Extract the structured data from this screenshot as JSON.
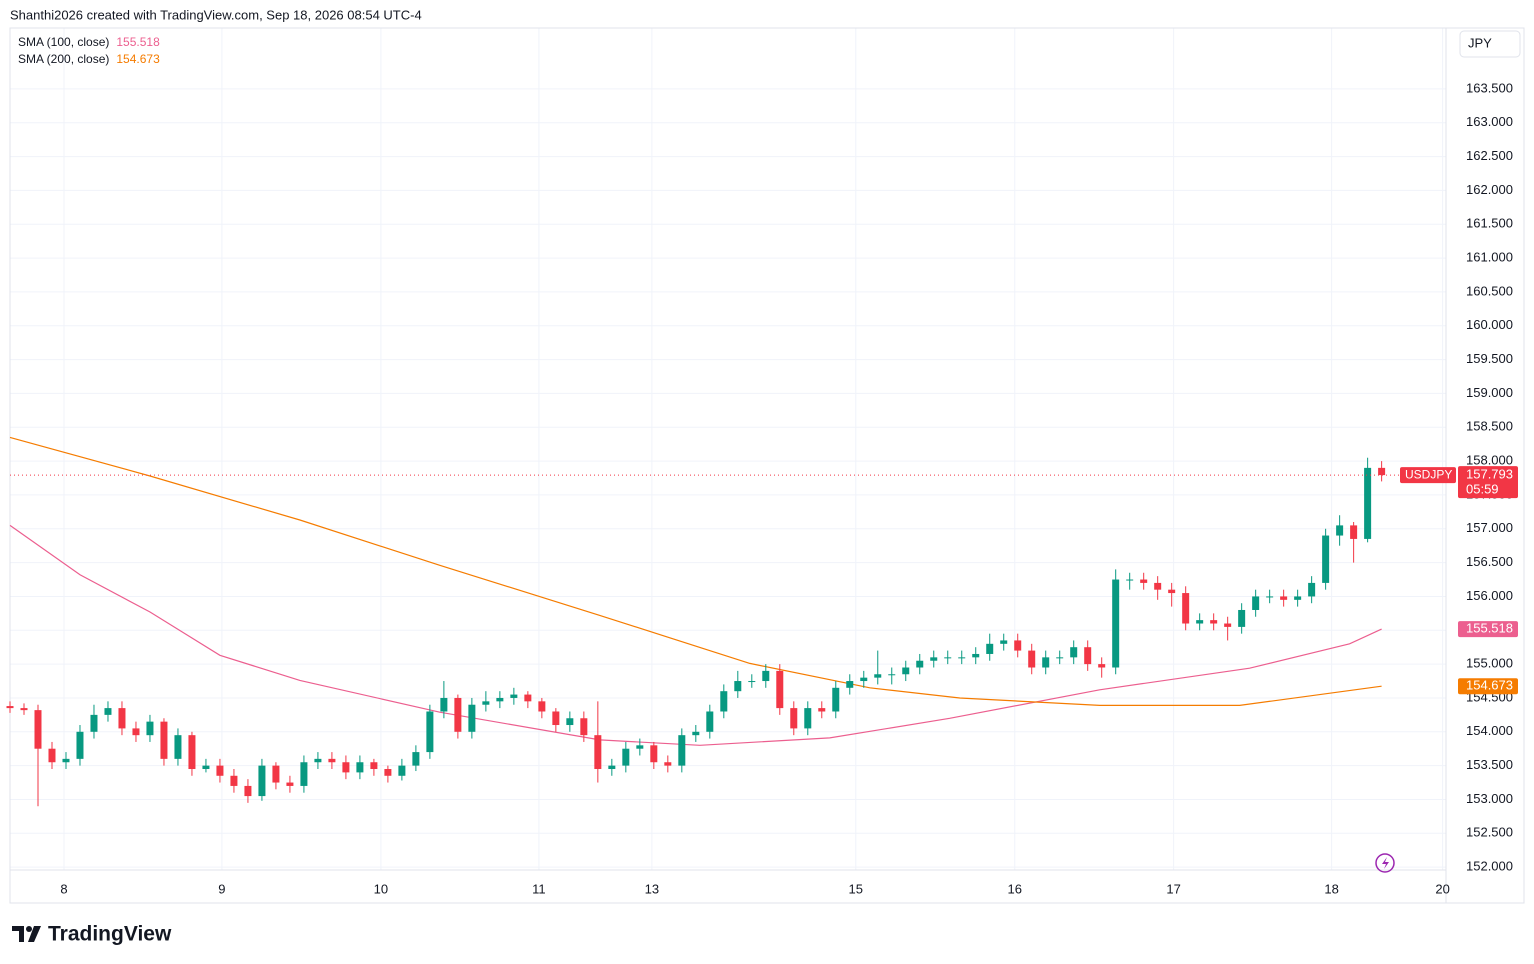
{
  "header": {
    "text": "Shanthi2026 created with TradingView.com, Sep 18, 2026 08:54 UTC-4"
  },
  "chart_data": {
    "type": "candlestick",
    "symbol": "USDJPY",
    "currency": "JPY",
    "up_color": "#089981",
    "down_color": "#f23645",
    "x": [
      0,
      1,
      2,
      3,
      4,
      5,
      6,
      7,
      8,
      9,
      10,
      11,
      12,
      13,
      14,
      15,
      16,
      17,
      18,
      19,
      20,
      21,
      22,
      23,
      24,
      25,
      26,
      27,
      28,
      29,
      30,
      31,
      32,
      33,
      34,
      35,
      36,
      37,
      38,
      39,
      40,
      41,
      42,
      43,
      44,
      45,
      46,
      47,
      48,
      49,
      50,
      51,
      52,
      53,
      54,
      55,
      56,
      57,
      58,
      59,
      60,
      61,
      62,
      63,
      64,
      65,
      66,
      67,
      68,
      69,
      70,
      71,
      72,
      73,
      74,
      75,
      76,
      77,
      78,
      79,
      80,
      81,
      82,
      83,
      84,
      85,
      86,
      87,
      88,
      89,
      90,
      91,
      92,
      93,
      94,
      95,
      96,
      97,
      98
    ],
    "open": [
      154.38,
      154.35,
      154.32,
      153.75,
      153.55,
      153.6,
      154.0,
      154.25,
      154.35,
      154.05,
      153.95,
      154.15,
      153.6,
      153.95,
      153.45,
      153.5,
      153.35,
      153.2,
      153.05,
      153.5,
      153.25,
      153.2,
      153.55,
      153.6,
      153.55,
      153.4,
      153.55,
      153.45,
      153.35,
      153.5,
      153.7,
      154.3,
      154.5,
      154.0,
      154.4,
      154.45,
      154.5,
      154.55,
      154.45,
      154.3,
      154.1,
      154.2,
      153.95,
      153.45,
      153.5,
      153.75,
      153.8,
      153.55,
      153.5,
      153.95,
      154.0,
      154.3,
      154.6,
      154.75,
      154.75,
      154.9,
      154.35,
      154.05,
      154.35,
      154.3,
      154.65,
      154.75,
      154.8,
      154.85,
      154.85,
      154.95,
      155.05,
      155.1,
      155.1,
      155.1,
      155.15,
      155.3,
      155.35,
      155.2,
      154.95,
      155.1,
      155.1,
      155.25,
      155.0,
      154.95,
      156.25,
      156.25,
      156.2,
      156.1,
      156.05,
      155.6,
      155.65,
      155.6,
      155.55,
      155.8,
      156.0,
      156.0,
      155.95,
      156.0,
      156.2,
      156.9,
      157.05,
      156.85,
      157.9
    ],
    "high": [
      154.45,
      154.42,
      154.4,
      153.85,
      153.7,
      154.1,
      154.4,
      154.45,
      154.45,
      154.15,
      154.25,
      154.2,
      154.05,
      154.0,
      153.6,
      153.6,
      153.45,
      153.3,
      153.6,
      153.55,
      153.35,
      153.65,
      153.7,
      153.7,
      153.65,
      153.65,
      153.6,
      153.5,
      153.6,
      153.8,
      154.4,
      154.75,
      154.55,
      154.5,
      154.6,
      154.6,
      154.65,
      154.6,
      154.5,
      154.35,
      154.3,
      154.3,
      154.45,
      153.6,
      153.85,
      153.9,
      153.85,
      153.65,
      154.05,
      154.1,
      154.4,
      154.7,
      154.9,
      154.85,
      155.0,
      155.0,
      154.45,
      154.45,
      154.45,
      154.75,
      154.85,
      154.9,
      155.2,
      154.95,
      155.05,
      155.15,
      155.2,
      155.2,
      155.2,
      155.25,
      155.45,
      155.45,
      155.45,
      155.3,
      155.2,
      155.2,
      155.35,
      155.35,
      155.1,
      156.4,
      156.35,
      156.35,
      156.3,
      156.2,
      156.15,
      155.75,
      155.75,
      155.7,
      155.9,
      156.1,
      156.1,
      156.1,
      156.1,
      156.3,
      157.0,
      157.2,
      157.1,
      158.05,
      158.0
    ],
    "low": [
      154.28,
      154.25,
      152.9,
      153.45,
      153.45,
      153.5,
      153.9,
      154.15,
      153.95,
      153.85,
      153.85,
      153.5,
      153.5,
      153.35,
      153.4,
      153.25,
      153.1,
      152.95,
      152.98,
      153.15,
      153.1,
      153.1,
      153.45,
      153.45,
      153.3,
      153.3,
      153.35,
      153.25,
      153.28,
      153.42,
      153.6,
      154.2,
      153.9,
      153.9,
      154.3,
      154.35,
      154.4,
      154.35,
      154.2,
      154.0,
      154.0,
      153.85,
      153.25,
      153.35,
      153.4,
      153.65,
      153.45,
      153.4,
      153.4,
      153.85,
      153.9,
      154.2,
      154.5,
      154.65,
      154.65,
      154.25,
      153.95,
      153.95,
      154.2,
      154.2,
      154.55,
      154.65,
      154.7,
      154.7,
      154.75,
      154.85,
      154.95,
      155.0,
      155.0,
      155.0,
      155.05,
      155.2,
      155.1,
      154.85,
      154.85,
      155.0,
      155.0,
      154.9,
      154.8,
      154.85,
      156.1,
      156.1,
      155.95,
      155.85,
      155.5,
      155.5,
      155.5,
      155.35,
      155.45,
      155.7,
      155.9,
      155.85,
      155.85,
      155.9,
      156.1,
      156.75,
      156.5,
      156.8,
      157.7
    ],
    "close": [
      154.35,
      154.32,
      153.75,
      153.55,
      153.6,
      154.0,
      154.25,
      154.35,
      154.05,
      153.95,
      154.15,
      153.6,
      153.95,
      153.45,
      153.5,
      153.35,
      153.2,
      153.05,
      153.5,
      153.25,
      153.2,
      153.55,
      153.6,
      153.55,
      153.4,
      153.55,
      153.45,
      153.35,
      153.5,
      153.7,
      154.3,
      154.5,
      154.0,
      154.4,
      154.45,
      154.5,
      154.55,
      154.45,
      154.3,
      154.1,
      154.2,
      153.95,
      153.45,
      153.5,
      153.75,
      153.8,
      153.55,
      153.5,
      153.95,
      154.0,
      154.3,
      154.6,
      154.75,
      154.75,
      154.9,
      154.35,
      154.05,
      154.35,
      154.3,
      154.65,
      154.75,
      154.8,
      154.85,
      154.85,
      154.95,
      155.05,
      155.1,
      155.1,
      155.1,
      155.15,
      155.3,
      155.35,
      155.2,
      154.95,
      155.1,
      155.1,
      155.25,
      155.0,
      154.95,
      156.25,
      156.25,
      156.2,
      156.1,
      156.05,
      155.6,
      155.65,
      155.6,
      155.55,
      155.8,
      156.0,
      156.0,
      155.95,
      156.0,
      156.2,
      156.9,
      157.05,
      156.85,
      157.9,
      157.793
    ],
    "last_price": 157.793,
    "countdown": "05:59",
    "series": [
      {
        "name": "SMA (100, close)",
        "color": "#ec5f8f",
        "last_value": 155.518,
        "x": [
          0,
          5,
          10,
          15,
          20.71,
          30.71,
          42.14,
          49.29,
          58.57,
          67.14,
          77.86,
          88.57,
          95.71,
          98
        ],
        "values": [
          157.05,
          156.32,
          155.77,
          155.13,
          154.76,
          154.29,
          153.88,
          153.8,
          153.91,
          154.2,
          154.62,
          154.94,
          155.3,
          155.518
        ]
      },
      {
        "name": "SMA (200, close)",
        "color": "#f57c00",
        "last_value": 154.673,
        "x": [
          0,
          10,
          20.71,
          30.71,
          42.14,
          52.86,
          61.43,
          67.86,
          77.86,
          87.86,
          98
        ],
        "values": [
          158.35,
          157.78,
          157.13,
          156.46,
          155.72,
          155.01,
          154.65,
          154.5,
          154.39,
          154.39,
          154.673
        ]
      }
    ],
    "xlim": [
      0,
      102.6
    ],
    "xticks": [
      {
        "value": 3.86,
        "label": "8"
      },
      {
        "value": 15.14,
        "label": "9"
      },
      {
        "value": 26.5,
        "label": "10"
      },
      {
        "value": 37.79,
        "label": "11"
      },
      {
        "value": 45.86,
        "label": "13"
      },
      {
        "value": 60.43,
        "label": "15"
      },
      {
        "value": 71.79,
        "label": "16"
      },
      {
        "value": 83.14,
        "label": "17"
      },
      {
        "value": 94.43,
        "label": "18"
      },
      {
        "value": 102.36,
        "label": "20"
      }
    ],
    "ylim": [
      151.47,
      164.4
    ],
    "yticks": [
      {
        "value": 152,
        "label": "152.000"
      },
      {
        "value": 152.5,
        "label": "152.500"
      },
      {
        "value": 153,
        "label": "153.000"
      },
      {
        "value": 153.5,
        "label": "153.500"
      },
      {
        "value": 154,
        "label": "154.000"
      },
      {
        "value": 154.5,
        "label": "154.500"
      },
      {
        "value": 155,
        "label": "155.000"
      },
      {
        "value": 155.5,
        "label": "155.500"
      },
      {
        "value": 156,
        "label": "156.000"
      },
      {
        "value": 156.5,
        "label": "156.500"
      },
      {
        "value": 157,
        "label": "157.000"
      },
      {
        "value": 157.5,
        "label": "157.500"
      },
      {
        "value": 158,
        "label": "158.000"
      },
      {
        "value": 158.5,
        "label": "158.500"
      },
      {
        "value": 159,
        "label": "159.000"
      },
      {
        "value": 159.5,
        "label": "159.500"
      },
      {
        "value": 160,
        "label": "160.000"
      },
      {
        "value": 160.5,
        "label": "160.500"
      },
      {
        "value": 161,
        "label": "161.000"
      },
      {
        "value": 161.5,
        "label": "161.500"
      },
      {
        "value": 162,
        "label": "162.000"
      },
      {
        "value": 162.5,
        "label": "162.500"
      },
      {
        "value": 163,
        "label": "163.000"
      },
      {
        "value": 163.5,
        "label": "163.500"
      }
    ],
    "grid": true
  },
  "footer": {
    "logo": "TradingView"
  }
}
